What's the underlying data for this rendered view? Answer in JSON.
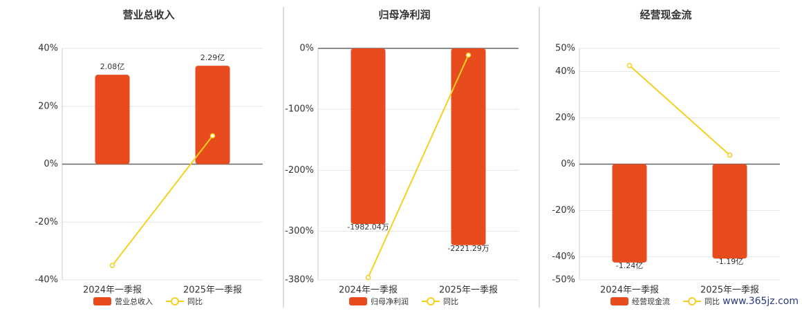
{
  "chart_data": [
    {
      "type": "bar_line",
      "title": "营业总收入",
      "categories": [
        "2024年一季报",
        "2025年一季报"
      ],
      "series": [
        {
          "name": "营业总收入",
          "color": "#e84c1e",
          "type": "bar",
          "values": [
            2.08,
            2.29
          ],
          "value_labels": [
            "2.08亿",
            "2.29亿"
          ]
        },
        {
          "name": "同比",
          "color": "#f5d01f",
          "type": "line",
          "values": [
            -35,
            9.8
          ]
        }
      ],
      "ylim": [
        -40,
        40
      ],
      "yticks": [
        {
          "value": 40,
          "label": "40%"
        },
        {
          "value": 20,
          "label": "20%"
        },
        {
          "value": 0,
          "label": "0%"
        },
        {
          "value": -20,
          "label": "-20%"
        },
        {
          "value": -40,
          "label": "-40%"
        }
      ],
      "grid": true
    },
    {
      "type": "bar_line",
      "title": "归母净利润",
      "categories": [
        "2024年一季报",
        "2025年一季报"
      ],
      "series": [
        {
          "name": "归母净利润",
          "color": "#e84c1e",
          "type": "bar",
          "values": [
            -1982.04,
            -2221.29
          ],
          "value_labels": [
            "-1982.04万",
            "-2221.29万"
          ]
        },
        {
          "name": "同比",
          "color": "#f5d01f",
          "type": "line",
          "values": [
            -376,
            -11
          ]
        }
      ],
      "ylim": [
        -380,
        0
      ],
      "yticks": [
        {
          "value": 0,
          "label": "0%"
        },
        {
          "value": -100,
          "label": "-100%"
        },
        {
          "value": -200,
          "label": "-200%"
        },
        {
          "value": -300,
          "label": "-300%"
        },
        {
          "value": -380,
          "label": "-380%"
        }
      ],
      "grid": true
    },
    {
      "type": "bar_line",
      "title": "经营现金流",
      "categories": [
        "2024年一季报",
        "2025年一季报"
      ],
      "series": [
        {
          "name": "经营现金流",
          "color": "#e84c1e",
          "type": "bar",
          "values": [
            -1.24,
            -1.19
          ],
          "value_labels": [
            "-1.24亿",
            "-1.19亿"
          ]
        },
        {
          "name": "同比",
          "color": "#f5d01f",
          "type": "line",
          "values": [
            42.6,
            3.9
          ]
        }
      ],
      "ylim": [
        -50,
        50
      ],
      "yticks": [
        {
          "value": 50,
          "label": "50%"
        },
        {
          "value": 40,
          "label": "40%"
        },
        {
          "value": 20,
          "label": "20%"
        },
        {
          "value": 0,
          "label": "0%"
        },
        {
          "value": -20,
          "label": "-20%"
        },
        {
          "value": -40,
          "label": "-40%"
        },
        {
          "value": -50,
          "label": "-50%"
        }
      ],
      "grid": true
    }
  ],
  "watermark": "www.365jz.com"
}
